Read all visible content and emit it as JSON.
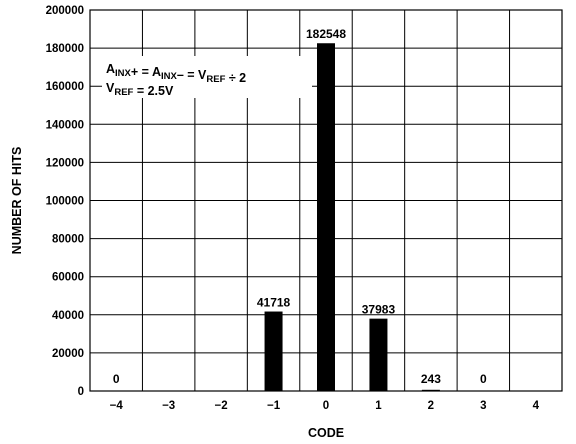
{
  "chart_data": {
    "type": "bar",
    "categories": [
      "−4",
      "−3",
      "−2",
      "−1",
      "0",
      "1",
      "2",
      "3",
      "4"
    ],
    "values": [
      0,
      0,
      0,
      41718,
      182548,
      37983,
      243,
      0,
      0
    ],
    "data_labels": [
      {
        "category": "−4",
        "text": "0"
      },
      {
        "category": "−1",
        "text": "41718"
      },
      {
        "category": "0",
        "text": "182548"
      },
      {
        "category": "1",
        "text": "37983"
      },
      {
        "category": "2",
        "text": "243"
      },
      {
        "category": "3",
        "text": "0"
      }
    ],
    "xlabel": "CODE",
    "ylabel": "NUMBER OF HITS",
    "ylim": [
      0,
      200000
    ],
    "yticks": [
      0,
      20000,
      40000,
      60000,
      80000,
      100000,
      120000,
      140000,
      160000,
      180000,
      200000
    ],
    "grid": true,
    "bar_color": "#000000",
    "annotation": {
      "line1": [
        {
          "text": "A",
          "sub": false
        },
        {
          "text": "INX",
          "sub": true
        },
        {
          "text": "+ = A",
          "sub": false
        },
        {
          "text": "INX",
          "sub": true
        },
        {
          "text": "– = V",
          "sub": false
        },
        {
          "text": "REF",
          "sub": true
        },
        {
          "text": " ÷ 2",
          "sub": false
        }
      ],
      "line2": [
        {
          "text": "V",
          "sub": false
        },
        {
          "text": "REF",
          "sub": true
        },
        {
          "text": " = 2.5V",
          "sub": false
        }
      ]
    }
  }
}
